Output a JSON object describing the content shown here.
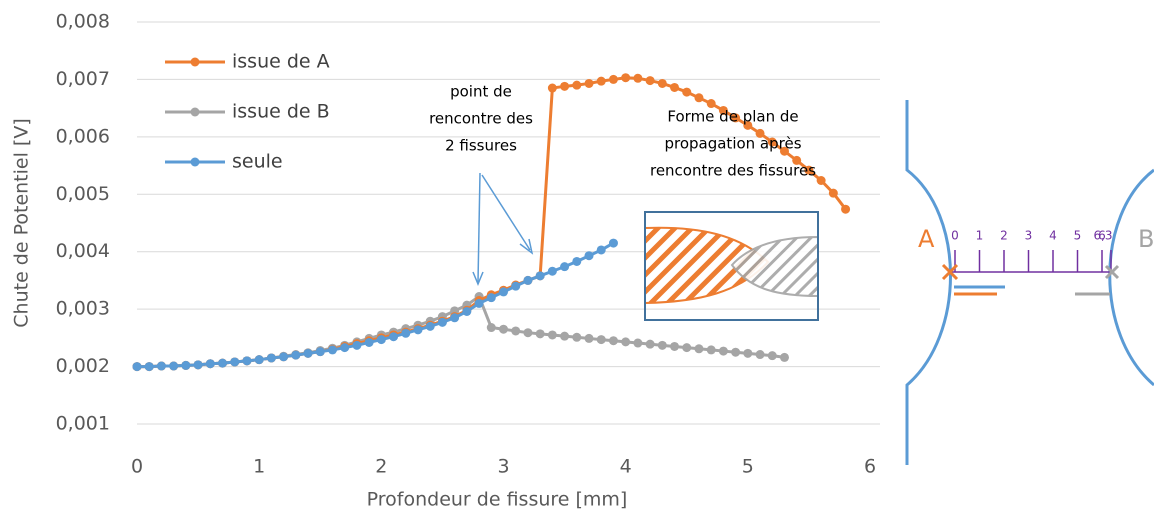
{
  "chart_data": {
    "type": "line",
    "x_label": "Profondeur de fissure [mm]",
    "y_label": "Chute de Potentiel [V]",
    "xlim": [
      0,
      6
    ],
    "xticks": [
      0,
      1,
      2,
      3,
      4,
      5,
      6
    ],
    "ylim": [
      0.001,
      0.008
    ],
    "yticks": [
      {
        "value": 0.001,
        "label": "0,001"
      },
      {
        "value": 0.002,
        "label": "0,002"
      },
      {
        "value": 0.003,
        "label": "0,003"
      },
      {
        "value": 0.004,
        "label": "0,004"
      },
      {
        "value": 0.005,
        "label": "0,005"
      },
      {
        "value": 0.006,
        "label": "0,006"
      },
      {
        "value": 0.007,
        "label": "0,007"
      },
      {
        "value": 0.008,
        "label": "0,008"
      }
    ],
    "grid": true,
    "legend": "upper left",
    "series": [
      {
        "name": "issue de A",
        "color": "#ED7D31",
        "x": [
          0,
          0.1,
          0.2,
          0.3,
          0.4,
          0.5,
          0.6,
          0.7,
          0.8,
          0.9,
          1,
          1.1,
          1.2,
          1.3,
          1.4,
          1.5,
          1.6,
          1.7,
          1.8,
          1.9,
          2,
          2.1,
          2.2,
          2.3,
          2.4,
          2.5,
          2.6,
          2.7,
          2.8,
          2.9,
          3,
          3.1,
          3.2,
          3.3,
          3.4,
          3.5,
          3.6,
          3.7,
          3.8,
          3.9,
          4,
          4.1,
          4.2,
          4.3,
          4.4,
          4.5,
          4.6,
          4.7,
          4.8,
          4.9,
          5,
          5.1,
          5.2,
          5.3,
          5.4,
          5.5,
          5.6,
          5.7,
          5.8
        ],
        "values": [
          0.002,
          0.002,
          0.00201,
          0.00201,
          0.00202,
          0.00203,
          0.00205,
          0.00206,
          0.00208,
          0.0021,
          0.00212,
          0.00215,
          0.00217,
          0.0022,
          0.00223,
          0.00226,
          0.0023,
          0.00235,
          0.0024,
          0.00245,
          0.0025,
          0.00255,
          0.0026,
          0.00266,
          0.00272,
          0.00279,
          0.00287,
          0.00298,
          0.00315,
          0.00325,
          0.00333,
          0.00342,
          0.0035,
          0.00358,
          0.00685,
          0.00688,
          0.0069,
          0.00693,
          0.00697,
          0.007,
          0.00703,
          0.00702,
          0.00698,
          0.00693,
          0.00686,
          0.00678,
          0.00668,
          0.00658,
          0.00646,
          0.00633,
          0.0062,
          0.00606,
          0.00591,
          0.00575,
          0.00559,
          0.00542,
          0.00524,
          0.00502,
          0.00474
        ]
      },
      {
        "name": "issue de B",
        "color": "#A5A5A5",
        "x": [
          0,
          0.1,
          0.2,
          0.3,
          0.4,
          0.5,
          0.6,
          0.7,
          0.8,
          0.9,
          1,
          1.1,
          1.2,
          1.3,
          1.4,
          1.5,
          1.6,
          1.7,
          1.8,
          1.9,
          2,
          2.1,
          2.2,
          2.3,
          2.4,
          2.5,
          2.6,
          2.7,
          2.8,
          2.9,
          3,
          3.1,
          3.2,
          3.3,
          3.4,
          3.5,
          3.6,
          3.7,
          3.8,
          3.9,
          4,
          4.1,
          4.2,
          4.3,
          4.4,
          4.5,
          4.6,
          4.7,
          4.8,
          4.9,
          5,
          5.1,
          5.2,
          5.3
        ],
        "values": [
          0.002,
          0.002,
          0.00201,
          0.00201,
          0.00202,
          0.00203,
          0.00205,
          0.00206,
          0.00208,
          0.0021,
          0.00212,
          0.00215,
          0.00218,
          0.00221,
          0.00224,
          0.00228,
          0.00232,
          0.00237,
          0.00243,
          0.00249,
          0.00255,
          0.0026,
          0.00266,
          0.00272,
          0.00279,
          0.00287,
          0.00297,
          0.00307,
          0.00322,
          0.00268,
          0.00265,
          0.00262,
          0.00259,
          0.00257,
          0.00255,
          0.00253,
          0.00251,
          0.00249,
          0.00247,
          0.00245,
          0.00243,
          0.00241,
          0.00239,
          0.00237,
          0.00235,
          0.00233,
          0.00231,
          0.00229,
          0.00227,
          0.00225,
          0.00223,
          0.00221,
          0.00219,
          0.00216
        ]
      },
      {
        "name": "seule",
        "color": "#5B9BD5",
        "x": [
          0,
          0.1,
          0.2,
          0.3,
          0.4,
          0.5,
          0.6,
          0.7,
          0.8,
          0.9,
          1,
          1.1,
          1.2,
          1.3,
          1.4,
          1.5,
          1.6,
          1.7,
          1.8,
          1.9,
          2,
          2.1,
          2.2,
          2.3,
          2.4,
          2.5,
          2.6,
          2.7,
          2.8,
          2.9,
          3,
          3.1,
          3.2,
          3.3,
          3.4,
          3.5,
          3.6,
          3.7,
          3.8,
          3.9
        ],
        "values": [
          0.002,
          0.002,
          0.00201,
          0.00201,
          0.00202,
          0.00203,
          0.00205,
          0.00206,
          0.00208,
          0.0021,
          0.00212,
          0.00215,
          0.00217,
          0.0022,
          0.00223,
          0.00226,
          0.00229,
          0.00233,
          0.00237,
          0.00242,
          0.00247,
          0.00252,
          0.00258,
          0.00264,
          0.0027,
          0.00277,
          0.00285,
          0.00296,
          0.0031,
          0.0032,
          0.0033,
          0.0034,
          0.0035,
          0.00358,
          0.00366,
          0.00374,
          0.00383,
          0.00393,
          0.00403,
          0.00415
        ]
      }
    ],
    "annotations": [
      [
        "point de",
        "rencontre des",
        "2 fissures"
      ],
      [
        "Forme de plan de",
        "propagation après",
        "rencontre des fissures"
      ]
    ]
  },
  "diagram": {
    "left_label": "A",
    "right_label": "B",
    "scale": [
      "0",
      "1",
      "2",
      "3",
      "4",
      "5",
      "6",
      "6,3"
    ]
  }
}
